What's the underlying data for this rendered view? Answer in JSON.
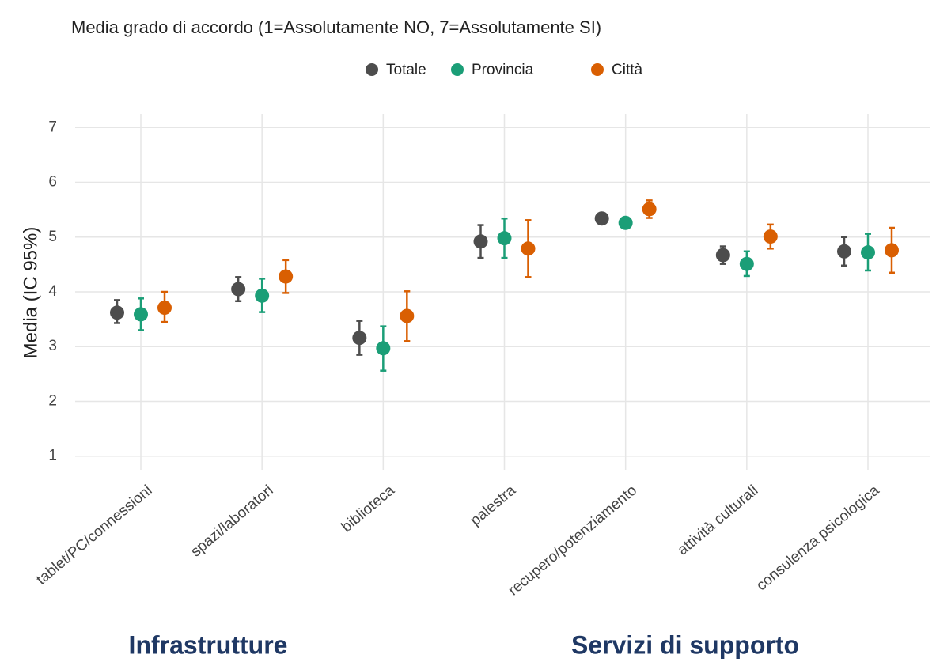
{
  "chart_data": {
    "type": "dot-errorbar",
    "title": "Media grado di accordo (1=Assolutamente NO, 7=Assolutamente SI)",
    "ylabel": "Media (IC 95%)",
    "categories": [
      "tablet/PC/connessioni",
      "spazi/laboratori",
      "biblioteca",
      "palestra",
      "recupero/potenziamento",
      "attività culturali",
      "consulenza psicologica"
    ],
    "series": [
      {
        "name": "Totale",
        "color": "#4d4d4d",
        "values": [
          3.62,
          4.05,
          3.16,
          4.92,
          5.34,
          4.67,
          4.74
        ],
        "lower": [
          3.43,
          3.83,
          2.85,
          4.62,
          5.27,
          4.51,
          4.48
        ],
        "upper": [
          3.85,
          4.27,
          3.47,
          5.22,
          5.41,
          4.83,
          5.0
        ]
      },
      {
        "name": "Provincia",
        "color": "#1b9e77",
        "values": [
          3.59,
          3.93,
          2.97,
          4.98,
          5.26,
          4.51,
          4.72
        ],
        "lower": [
          3.3,
          3.63,
          2.56,
          4.62,
          5.16,
          4.29,
          4.39
        ],
        "upper": [
          3.88,
          4.24,
          3.37,
          5.34,
          5.36,
          4.74,
          5.06
        ]
      },
      {
        "name": "Città",
        "color": "#d95f02",
        "values": [
          3.71,
          4.28,
          3.56,
          4.79,
          5.51,
          5.01,
          4.76
        ],
        "lower": [
          3.45,
          3.98,
          3.1,
          4.27,
          5.35,
          4.79,
          4.35
        ],
        "upper": [
          4.0,
          4.58,
          4.01,
          5.31,
          5.67,
          5.23,
          5.17
        ]
      }
    ],
    "ylim": [
      0.75,
      7.25
    ],
    "yticks": [
      1,
      2,
      3,
      4,
      5,
      6,
      7
    ],
    "grid": true,
    "legend": "top",
    "annotations": [
      "Infrastrutture",
      "Servizi di supporto"
    ]
  }
}
